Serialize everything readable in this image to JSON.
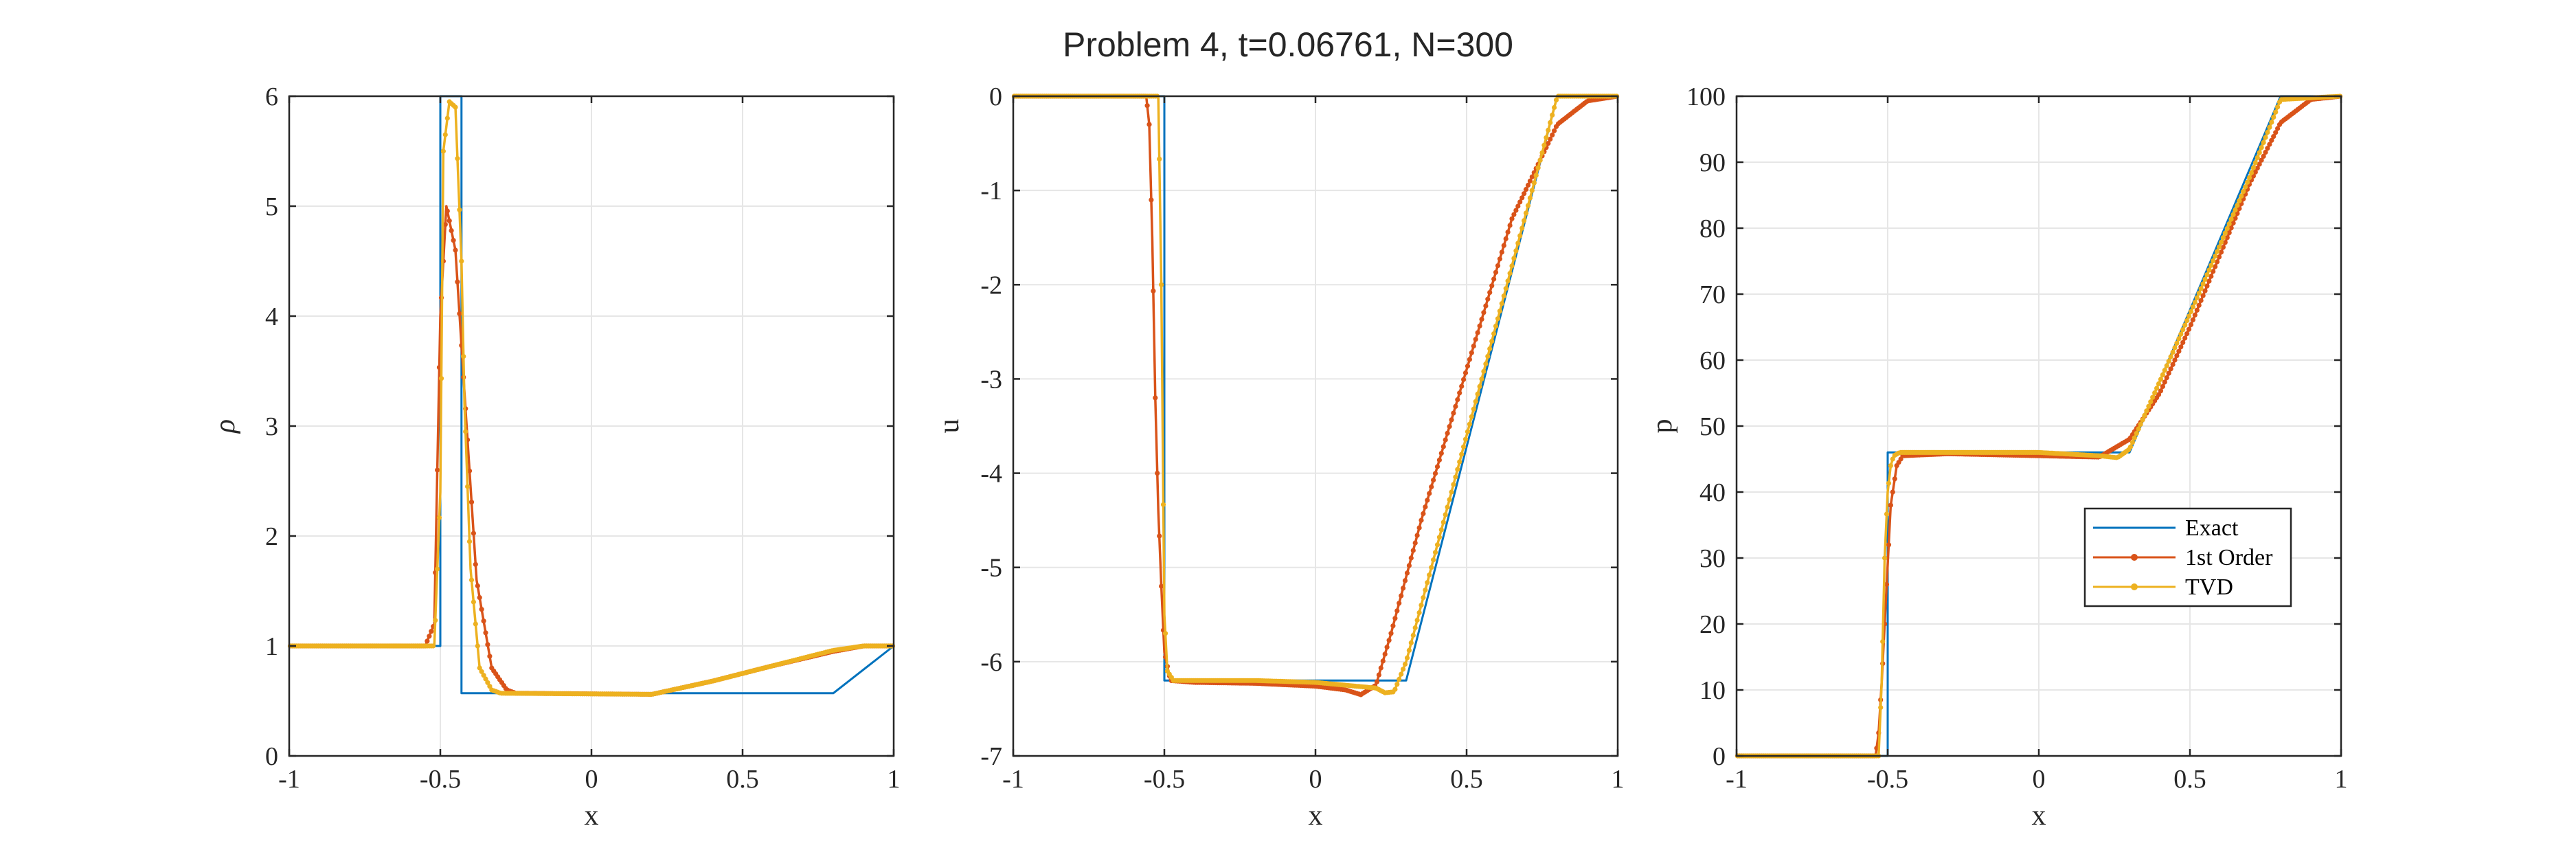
{
  "suptitle": "Problem 4, t=0.06761, N=300",
  "legend": {
    "position": "inside, right-center of third panel",
    "entries": [
      "Exact",
      "1st Order",
      "TVD"
    ]
  },
  "colors": {
    "exact": "#0072BD",
    "first_order": "#D95319",
    "tvd": "#EDB120",
    "grid": "#e6e6e6",
    "axis": "#262626"
  },
  "chart_data": [
    {
      "type": "line",
      "title": "",
      "xlabel": "x",
      "ylabel": "ρ",
      "xlim": [
        -1,
        1
      ],
      "ylim": [
        0,
        6
      ],
      "xticks": [
        "-1",
        "-0.5",
        "0",
        "0.5",
        "1"
      ],
      "yticks": [
        "0",
        "1",
        "2",
        "3",
        "4",
        "5",
        "6"
      ],
      "grid": true,
      "series": [
        {
          "name": "Exact",
          "x": [
            -1,
            -0.5,
            -0.5,
            -0.43,
            -0.43,
            0.8,
            1
          ],
          "y": [
            1,
            1,
            6,
            6,
            0.57,
            0.57,
            1
          ]
        },
        {
          "name": "1st Order",
          "x": [
            -1,
            -0.55,
            -0.52,
            -0.5,
            -0.48,
            -0.45,
            -0.42,
            -0.38,
            -0.33,
            -0.28,
            -0.25,
            0.2,
            0.4,
            0.6,
            0.8,
            0.9,
            1
          ],
          "y": [
            1,
            1,
            1.2,
            4.0,
            5.0,
            4.6,
            3.3,
            1.6,
            0.8,
            0.6,
            0.57,
            0.56,
            0.68,
            0.82,
            0.95,
            1.0,
            1.0
          ]
        },
        {
          "name": "TVD",
          "x": [
            -1,
            -0.52,
            -0.5,
            -0.49,
            -0.47,
            -0.45,
            -0.43,
            -0.42,
            -0.4,
            -0.37,
            -0.33,
            -0.3,
            0.2,
            0.4,
            0.6,
            0.8,
            0.9,
            1
          ],
          "y": [
            1,
            1,
            2.4,
            5.5,
            5.95,
            5.9,
            4.5,
            3.2,
            1.7,
            0.8,
            0.6,
            0.57,
            0.56,
            0.68,
            0.82,
            0.96,
            1.0,
            1.0
          ]
        }
      ]
    },
    {
      "type": "line",
      "title": "",
      "xlabel": "x",
      "ylabel": "u",
      "xlim": [
        -1,
        1
      ],
      "ylim": [
        -7,
        0
      ],
      "xticks": [
        "-1",
        "-0.5",
        "0",
        "0.5",
        "1"
      ],
      "yticks": [
        "-7",
        "-6",
        "-5",
        "-4",
        "-3",
        "-2",
        "-1",
        "0"
      ],
      "grid": true,
      "series": [
        {
          "name": "Exact",
          "x": [
            -1,
            -0.5,
            -0.5,
            0.3,
            0.8,
            1
          ],
          "y": [
            0,
            0,
            -6.2,
            -6.2,
            0,
            0
          ]
        },
        {
          "name": "1st Order",
          "x": [
            -1,
            -0.56,
            -0.55,
            -0.54,
            -0.53,
            -0.52,
            -0.51,
            -0.5,
            -0.48,
            -0.4,
            -0.2,
            0,
            0.1,
            0.15,
            0.2,
            0.25,
            0.35,
            0.5,
            0.65,
            0.8,
            0.9,
            1
          ],
          "y": [
            0,
            0,
            -0.3,
            -1.5,
            -3.2,
            -4.4,
            -5.2,
            -5.9,
            -6.2,
            -6.22,
            -6.23,
            -6.26,
            -6.3,
            -6.35,
            -6.25,
            -5.7,
            -4.5,
            -2.9,
            -1.3,
            -0.3,
            -0.05,
            0
          ]
        },
        {
          "name": "TVD",
          "x": [
            -1,
            -0.52,
            -0.51,
            -0.5,
            -0.49,
            -0.47,
            -0.4,
            -0.2,
            0,
            0.2,
            0.23,
            0.26,
            0.3,
            0.5,
            0.7,
            0.8,
            1
          ],
          "y": [
            0,
            0,
            -2.0,
            -5.5,
            -6.1,
            -6.2,
            -6.2,
            -6.2,
            -6.22,
            -6.28,
            -6.33,
            -6.32,
            -6.0,
            -3.6,
            -1.2,
            0,
            0
          ]
        }
      ]
    },
    {
      "type": "line",
      "title": "",
      "xlabel": "x",
      "ylabel": "p",
      "xlim": [
        -1,
        1
      ],
      "ylim": [
        0,
        100
      ],
      "xticks": [
        "-1",
        "-0.5",
        "0",
        "0.5",
        "1"
      ],
      "yticks": [
        "0",
        "10",
        "20",
        "30",
        "40",
        "50",
        "60",
        "70",
        "80",
        "90",
        "100"
      ],
      "grid": true,
      "series": [
        {
          "name": "Exact",
          "x": [
            -1,
            -0.5,
            -0.5,
            0.3,
            0.8,
            1
          ],
          "y": [
            0,
            0,
            46,
            46,
            100,
            100
          ]
        },
        {
          "name": "1st Order",
          "x": [
            -1,
            -0.54,
            -0.53,
            -0.52,
            -0.51,
            -0.5,
            -0.49,
            -0.47,
            -0.45,
            -0.3,
            0,
            0.2,
            0.3,
            0.4,
            0.5,
            0.6,
            0.7,
            0.8,
            0.9,
            1
          ],
          "y": [
            0,
            0,
            3.5,
            11,
            20,
            29,
            38,
            44,
            45.5,
            45.8,
            45.5,
            45.3,
            48,
            55,
            65,
            76,
            87,
            96,
            99.5,
            100
          ]
        },
        {
          "name": "TVD",
          "x": [
            -1,
            -0.53,
            -0.52,
            -0.51,
            -0.5,
            -0.49,
            -0.48,
            -0.46,
            -0.3,
            0,
            0.2,
            0.26,
            0.3,
            0.5,
            0.7,
            0.8,
            1
          ],
          "y": [
            0,
            0,
            11,
            30,
            40,
            44,
            45.5,
            46,
            46,
            46,
            45.5,
            45.2,
            46.5,
            67,
            88,
            99.5,
            100
          ]
        }
      ]
    }
  ]
}
